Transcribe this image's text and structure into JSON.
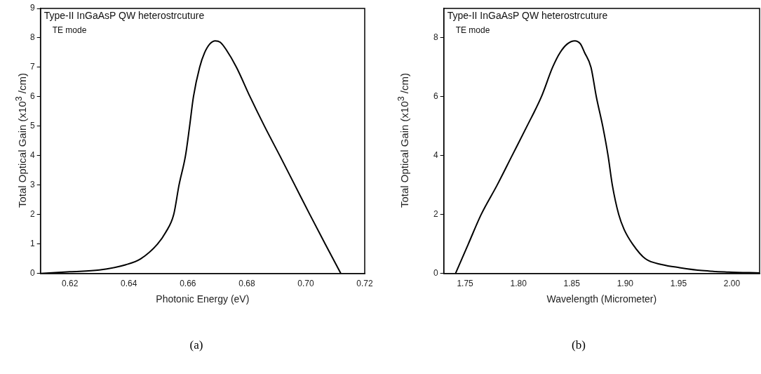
{
  "chart_data": [
    {
      "type": "line",
      "title": "Type-II InGaAsP QW heterostrcuture",
      "xlabel": "Photonic Energy (eV)",
      "ylabel": "Total Optical Gain (x10$^{3}$ /cm)",
      "annotations": [
        "TE mode",
        "(a)"
      ],
      "color": "#000000",
      "x": [
        0.61,
        0.62,
        0.63,
        0.639,
        0.644,
        0.6497,
        0.6525,
        0.6552,
        0.657,
        0.6592,
        0.6606,
        0.6619,
        0.664,
        0.6657,
        0.6675,
        0.6693,
        0.671,
        0.673,
        0.6765,
        0.6811,
        0.686,
        0.6912,
        0.6963,
        0.7014,
        0.7066,
        0.7119
      ],
      "values": [
        0,
        0.06,
        0.12,
        0.3,
        0.5,
        1,
        1.4,
        2,
        3,
        4,
        5,
        6,
        7,
        7.5,
        7.8,
        7.9,
        7.85,
        7.6,
        7,
        6,
        5,
        4,
        3,
        2,
        1,
        0
      ],
      "xlim": [
        0.61,
        0.72
      ],
      "xticks": [
        0.62,
        0.64,
        0.66,
        0.68,
        {
          "value": 0.7,
          "label": "0.70"
        },
        0.72
      ],
      "ylim": [
        0,
        9
      ],
      "yticks": [
        0,
        1,
        2,
        3,
        4,
        5,
        6,
        7,
        8,
        9
      ],
      "grid": false,
      "legend": false,
      "marker": "none",
      "line_style": "solid"
    },
    {
      "type": "line",
      "title": "Type-II InGaAsP QW heterostrcuture",
      "xlabel": "Wavelength (Micrometer)",
      "ylabel": "Total Optical Gain (x10$^{3}$ /cm)",
      "annotations": [
        "TE mode",
        "(b)"
      ],
      "color": "#000000",
      "x": [
        1.741,
        1.753,
        1.765,
        1.78,
        1.794,
        1.808,
        1.8215,
        1.832,
        1.839,
        1.846,
        1.8528,
        1.858,
        1.862,
        1.868,
        1.873,
        1.879,
        1.884,
        1.888,
        1.894,
        1.899,
        1.907,
        1.919,
        1.935,
        1.951,
        1.972,
        1.997,
        2.026
      ],
      "values": [
        0,
        1,
        2,
        3,
        4,
        5,
        6,
        7,
        7.5,
        7.8,
        7.9,
        7.8,
        7.5,
        7,
        6,
        5,
        4,
        3,
        2,
        1.5,
        1,
        0.5,
        0.3,
        0.2,
        0.1,
        0.05,
        0.02
      ],
      "xlim": [
        1.73,
        2.026
      ],
      "xticks": [
        1.75,
        {
          "value": 1.8,
          "label": "1.80"
        },
        1.85,
        {
          "value": 1.9,
          "label": "1.90"
        },
        1.95,
        {
          "value": 2,
          "label": "2.00"
        }
      ],
      "ylim": [
        0,
        9
      ],
      "yticks": [
        0,
        2,
        4,
        6,
        8
      ],
      "grid": false,
      "legend": false,
      "marker": "none",
      "line_style": "solid"
    }
  ]
}
